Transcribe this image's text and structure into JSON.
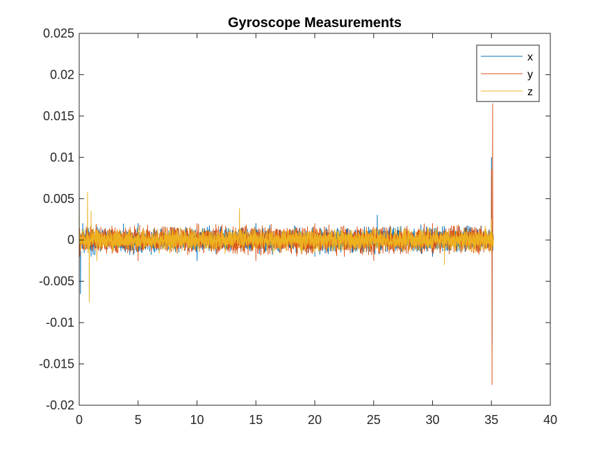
{
  "chart_data": {
    "type": "line",
    "title": "Gyroscope Measurements",
    "xlabel": "",
    "ylabel": "",
    "xlim": [
      0,
      40
    ],
    "ylim": [
      -0.02,
      0.025
    ],
    "x_ticks": [
      "0",
      "5",
      "10",
      "15",
      "20",
      "25",
      "30",
      "35",
      "40"
    ],
    "y_ticks": [
      "-0.02",
      "-0.015",
      "-0.01",
      "-0.005",
      "0",
      "0.005",
      "0.01",
      "0.015",
      "0.02",
      "0.025"
    ],
    "grid": false,
    "legend_position": "top-right",
    "series": [
      {
        "name": "x",
        "color": "#0072BD",
        "noise_amplitude": 0.002,
        "points": [
          [
            0,
            0.0
          ],
          [
            0.1,
            -0.0065
          ],
          [
            0.3,
            0.002
          ],
          [
            1.0,
            -0.002
          ],
          [
            5.0,
            0.002
          ],
          [
            10.0,
            -0.0025
          ],
          [
            15.0,
            0.002
          ],
          [
            20.0,
            -0.002
          ],
          [
            25.3,
            0.003
          ],
          [
            30.0,
            -0.002
          ],
          [
            34.9,
            0.001
          ],
          [
            35.0,
            0.01
          ],
          [
            35.05,
            -0.0125
          ],
          [
            35.1,
            0.0035
          ],
          [
            35.15,
            0.0
          ]
        ]
      },
      {
        "name": "y",
        "color": "#D95319",
        "noise_amplitude": 0.0022,
        "points": [
          [
            0,
            0.0
          ],
          [
            0.05,
            -0.002
          ],
          [
            1.0,
            0.002
          ],
          [
            5.0,
            -0.0025
          ],
          [
            10.0,
            0.002
          ],
          [
            15.0,
            -0.0025
          ],
          [
            20.0,
            0.002
          ],
          [
            25.0,
            -0.0025
          ],
          [
            30.0,
            0.002
          ],
          [
            34.9,
            0.0005
          ],
          [
            35.0,
            0.0085
          ],
          [
            35.05,
            -0.0175
          ],
          [
            35.1,
            0.0165
          ],
          [
            35.15,
            0.0
          ]
        ]
      },
      {
        "name": "z",
        "color": "#EDB120",
        "noise_amplitude": 0.0018,
        "points": [
          [
            0,
            0.006
          ],
          [
            0.2,
            0.0
          ],
          [
            0.7,
            0.0058
          ],
          [
            0.85,
            -0.0075
          ],
          [
            1.0,
            0.0035
          ],
          [
            1.5,
            -0.0025
          ],
          [
            5.0,
            0.0015
          ],
          [
            13.6,
            0.0038
          ],
          [
            20.0,
            -0.0015
          ],
          [
            31.0,
            -0.003
          ],
          [
            34.9,
            0.0
          ],
          [
            35.0,
            0.0025
          ],
          [
            35.15,
            0.0
          ]
        ]
      }
    ]
  }
}
